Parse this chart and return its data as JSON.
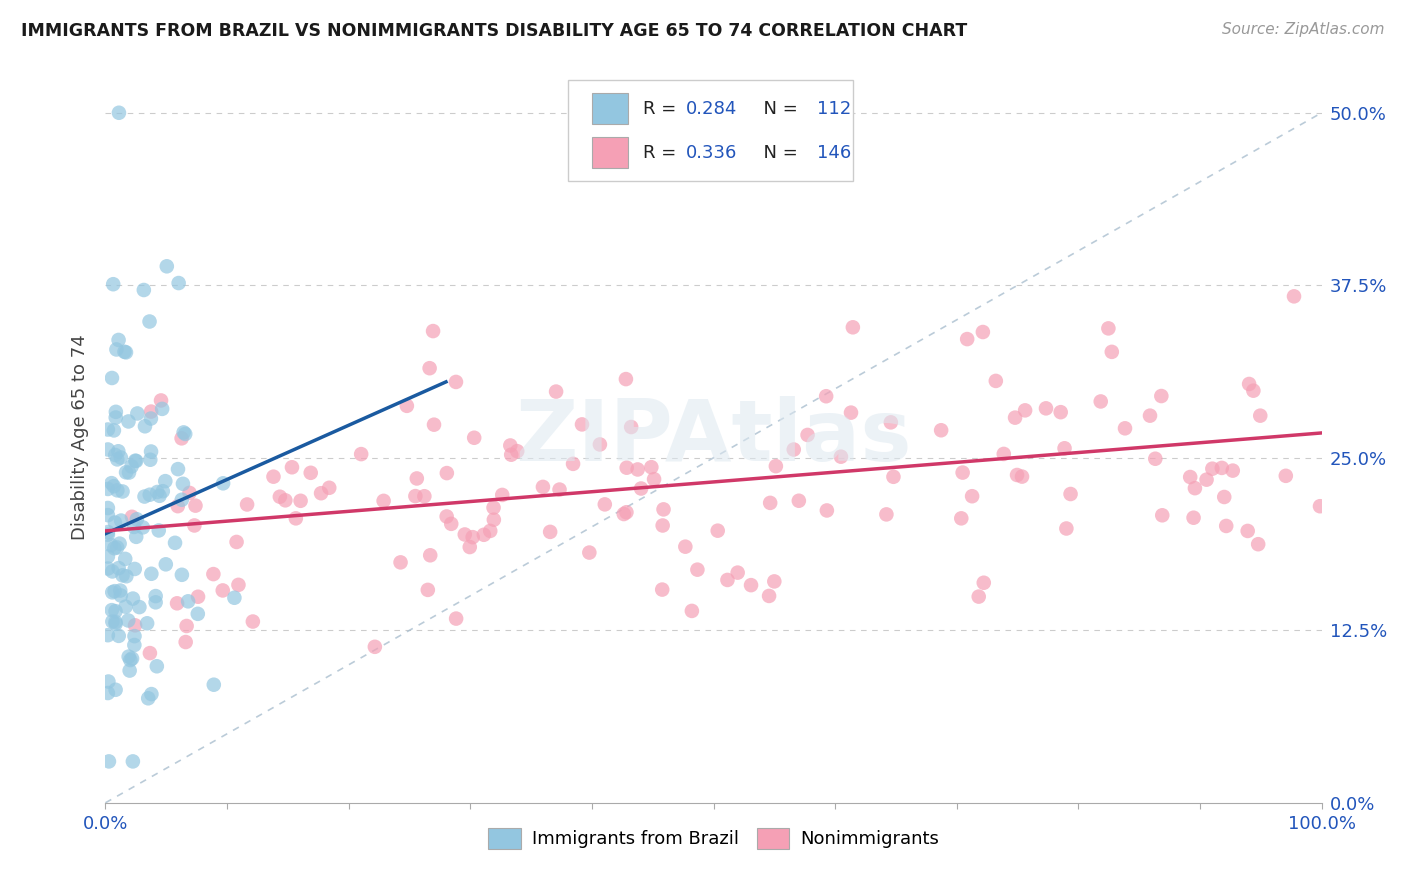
{
  "title": "IMMIGRANTS FROM BRAZIL VS NONIMMIGRANTS DISABILITY AGE 65 TO 74 CORRELATION CHART",
  "source": "Source: ZipAtlas.com",
  "ylabel": "Disability Age 65 to 74",
  "color_brazil": "#93C6E0",
  "color_brazil_line": "#1A5AA0",
  "color_nonimm": "#F5A0B5",
  "color_nonimm_line": "#D03868",
  "color_diagonal": "#AABFCF",
  "color_axis_labels": "#2255BB",
  "color_grid": "#CCCCCC",
  "background": "#FFFFFF",
  "xmin": 0.0,
  "xmax": 1.0,
  "ymin": 0.0,
  "ymax": 0.53,
  "yticks": [
    0.0,
    0.125,
    0.25,
    0.375,
    0.5
  ],
  "ytick_labels_right": [
    "0.0%",
    "12.5%",
    "25.0%",
    "37.5%",
    "50.0%"
  ],
  "xticks": [
    0.0,
    0.1,
    0.2,
    0.3,
    0.4,
    0.5,
    0.6,
    0.7,
    0.8,
    0.9,
    1.0
  ],
  "xtick_labels": [
    "0.0%",
    "",
    "",
    "",
    "",
    "",
    "",
    "",
    "",
    "",
    "100.0%"
  ],
  "R_brazil": 0.284,
  "N_brazil": 112,
  "R_nonimm": 0.336,
  "N_nonimm": 146,
  "legend1_label": "Immigrants from Brazil",
  "legend2_label": "Nonimmigrants",
  "watermark": "ZIPAtlas",
  "brazil_line_x0": 0.0,
  "brazil_line_y0": 0.195,
  "brazil_line_x1": 0.28,
  "brazil_line_y1": 0.305,
  "nonimm_line_x0": 0.0,
  "nonimm_line_y0": 0.197,
  "nonimm_line_x1": 1.0,
  "nonimm_line_y1": 0.268
}
